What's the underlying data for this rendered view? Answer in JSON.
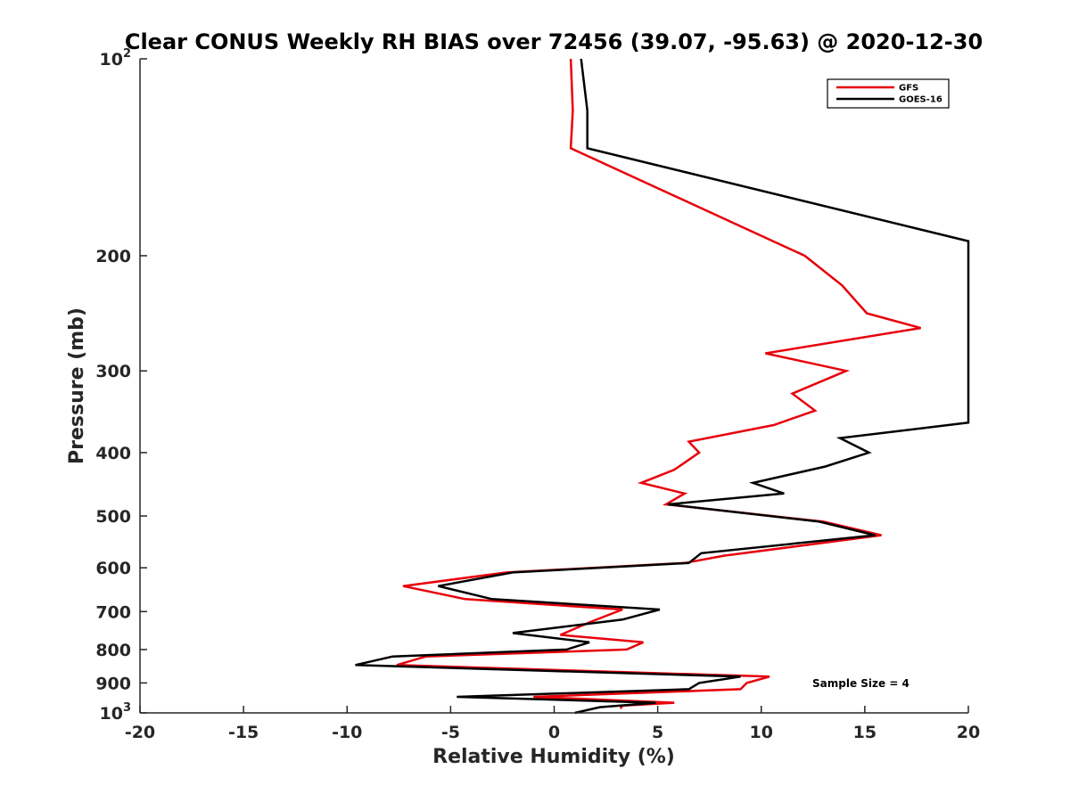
{
  "chart_data": {
    "type": "line",
    "title": "Clear CONUS Weekly RH BIAS over 72456 (39.07, -95.63) @ 2020-12-30",
    "xlabel": "Relative Humidity (%)",
    "ylabel": "Pressure (mb)",
    "xlim": [
      -20,
      20
    ],
    "ylim": [
      100,
      1000
    ],
    "yscale": "log",
    "y_reversed": true,
    "grid": false,
    "x_ticks": [
      -20,
      -15,
      -10,
      -5,
      0,
      5,
      10,
      15,
      20
    ],
    "x_tick_labels": [
      "-20",
      "-15",
      "-10",
      "-5",
      "0",
      "5",
      "10",
      "15",
      "20"
    ],
    "y_ticks": [
      {
        "value": 100,
        "base": "10",
        "exp": "2"
      },
      {
        "value": 200,
        "label": "200"
      },
      {
        "value": 300,
        "label": "300"
      },
      {
        "value": 400,
        "label": "400"
      },
      {
        "value": 500,
        "label": "500"
      },
      {
        "value": 600,
        "label": "600"
      },
      {
        "value": 700,
        "label": "700"
      },
      {
        "value": 800,
        "label": "800"
      },
      {
        "value": 900,
        "label": "900"
      },
      {
        "value": 1000,
        "base": "10",
        "exp": "3"
      }
    ],
    "legend": {
      "position": "top-right",
      "entries": [
        "GFS",
        "GOES-16"
      ]
    },
    "annotation": "Sample Size = 4",
    "series": [
      {
        "name": "GFS",
        "color": "#e8000b",
        "points": [
          [
            0.8,
            100
          ],
          [
            0.9,
            120
          ],
          [
            0.8,
            137
          ],
          [
            12.1,
            200
          ],
          [
            13.9,
            222
          ],
          [
            15.1,
            245
          ],
          [
            17.7,
            258
          ],
          [
            10.2,
            282
          ],
          [
            14.1,
            300
          ],
          [
            11.5,
            325
          ],
          [
            12.6,
            345
          ],
          [
            10.6,
            363
          ],
          [
            6.5,
            385
          ],
          [
            7.0,
            400
          ],
          [
            5.8,
            425
          ],
          [
            4.2,
            445
          ],
          [
            6.3,
            462
          ],
          [
            5.4,
            480
          ],
          [
            13.0,
            510
          ],
          [
            15.8,
            535
          ],
          [
            8.2,
            575
          ],
          [
            6.3,
            590
          ],
          [
            -2.3,
            610
          ],
          [
            -7.3,
            640
          ],
          [
            -4.3,
            670
          ],
          [
            3.3,
            695
          ],
          [
            1.8,
            725
          ],
          [
            0.3,
            760
          ],
          [
            4.3,
            780
          ],
          [
            3.5,
            800
          ],
          [
            -6.2,
            820
          ],
          [
            -7.6,
            845
          ],
          [
            10.4,
            880
          ],
          [
            9.3,
            900
          ],
          [
            9.0,
            920
          ],
          [
            -1.0,
            945
          ],
          [
            5.8,
            965
          ],
          [
            3.3,
            975
          ],
          [
            3.2,
            985
          ]
        ]
      },
      {
        "name": "GOES-16",
        "color": "#000000",
        "points": [
          [
            1.3,
            100
          ],
          [
            1.6,
            120
          ],
          [
            1.6,
            137
          ],
          [
            20.0,
            190
          ],
          [
            20.0,
            360
          ],
          [
            13.8,
            380
          ],
          [
            15.2,
            400
          ],
          [
            13.1,
            420
          ],
          [
            9.6,
            445
          ],
          [
            11.1,
            462
          ],
          [
            5.5,
            480
          ],
          [
            12.8,
            510
          ],
          [
            15.5,
            535
          ],
          [
            7.1,
            570
          ],
          [
            6.5,
            590
          ],
          [
            -2.0,
            610
          ],
          [
            -5.6,
            640
          ],
          [
            -3.0,
            670
          ],
          [
            5.1,
            695
          ],
          [
            3.3,
            720
          ],
          [
            -2.0,
            755
          ],
          [
            1.7,
            780
          ],
          [
            0.6,
            800
          ],
          [
            -7.8,
            820
          ],
          [
            -9.6,
            845
          ],
          [
            9.0,
            880
          ],
          [
            7.0,
            900
          ],
          [
            6.5,
            920
          ],
          [
            -4.7,
            945
          ],
          [
            4.9,
            965
          ],
          [
            2.2,
            980
          ],
          [
            1.0,
            1000
          ]
        ]
      }
    ]
  }
}
